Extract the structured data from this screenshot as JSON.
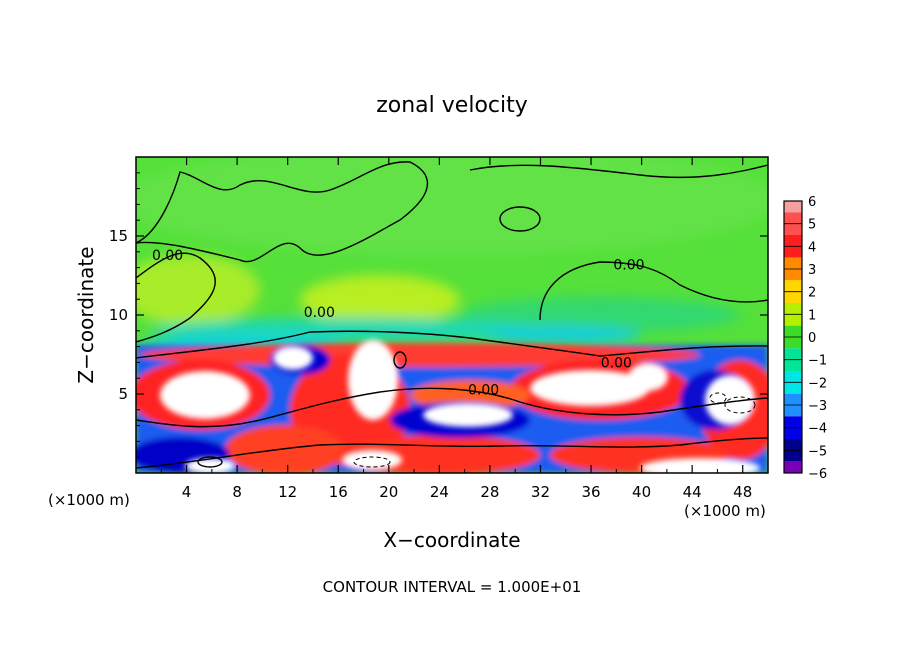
{
  "chart_data": {
    "type": "heatmap",
    "title": "zonal velocity",
    "xlabel": "X−coordinate",
    "ylabel": "Z−coordinate",
    "x_unit_left": "(×1000 m)",
    "x_unit_right": "(×1000 m)",
    "footer": "CONTOUR INTERVAL = 1.000E+01",
    "xlim": [
      0,
      50
    ],
    "ylim": [
      0,
      20
    ],
    "x_ticks": [
      "4",
      "8",
      "12",
      "16",
      "20",
      "24",
      "28",
      "32",
      "36",
      "40",
      "44",
      "48"
    ],
    "x_tick_values": [
      4,
      8,
      12,
      16,
      20,
      24,
      28,
      32,
      36,
      40,
      44,
      48
    ],
    "y_ticks": [
      "5",
      "10",
      "15"
    ],
    "y_tick_values": [
      5,
      10,
      15
    ],
    "colorbar": {
      "labels": [
        "6",
        "5",
        "4",
        "3",
        "2",
        "1",
        "0",
        "−1",
        "−2",
        "−3",
        "−4",
        "−5",
        "−6"
      ],
      "colors": [
        "#f5a0a0",
        "#ff5050",
        "#ff1e1e",
        "#ff8c00",
        "#ffd700",
        "#b4f000",
        "#3cdc28",
        "#00e696",
        "#00e6e6",
        "#1e90ff",
        "#0000e6",
        "#00008c",
        "#7800b4"
      ]
    },
    "contour_labels": [
      {
        "text": "0.00",
        "x": 2.5,
        "z": 13.8
      },
      {
        "text": "0.00",
        "x": 14.5,
        "z": 10.2
      },
      {
        "text": "0.00",
        "x": 39.0,
        "z": 13.2
      },
      {
        "text": "0.00",
        "x": 27.5,
        "z": 5.3
      },
      {
        "text": "0.00",
        "x": 38.0,
        "z": 7.0
      }
    ]
  }
}
